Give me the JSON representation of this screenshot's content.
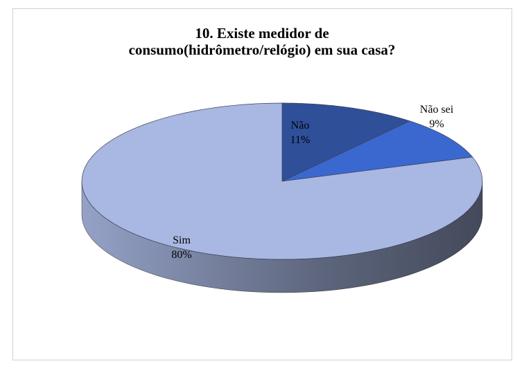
{
  "chart_data": {
    "type": "pie3d",
    "title": "10. Existe medidor de consumo(hidrômetro/relógio) em sua casa?",
    "categories": [
      "Não",
      "Não sei",
      "Sim"
    ],
    "values": [
      11,
      9,
      80
    ],
    "value_labels": [
      "11%",
      "9%",
      "80%"
    ],
    "colors": [
      "#2f4f99",
      "#3b68cf",
      "#a9b8e2"
    ]
  }
}
